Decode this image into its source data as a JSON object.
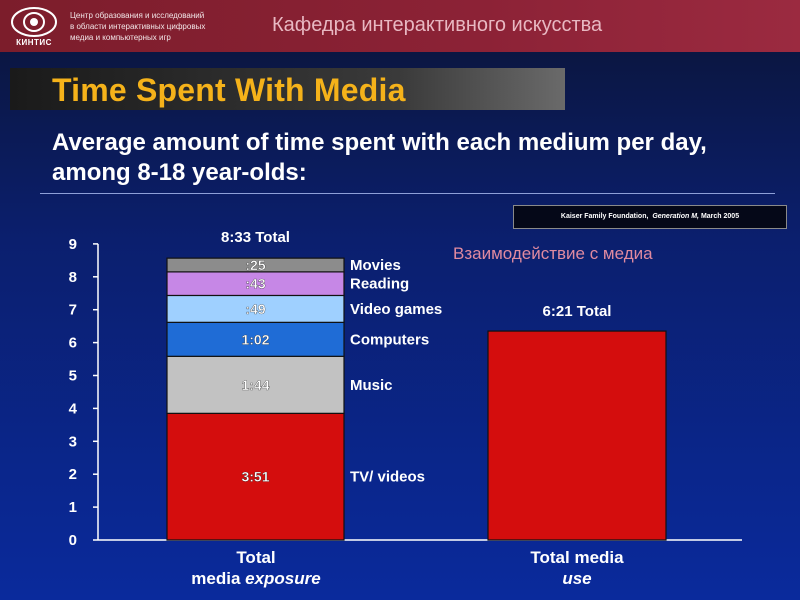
{
  "header": {
    "logo_text": "КИНТИС",
    "org_lines": [
      "Центр образования и исследований",
      "в области интерактивных цифровых",
      "медиа и компьютерных игр"
    ],
    "department": "Кафедра интерактивного искусства"
  },
  "slide": {
    "title": "Time Spent With Media",
    "subtitle": "Average amount of time spent with each medium per day, among 8-18 year-olds:",
    "source_text": "Kaiser Family Foundation,",
    "source_italic": "Generation M,",
    "source_date": "March 2005",
    "overlay_text": "Взаимодействие с медиа"
  },
  "colors": {
    "movies": "#8c8c8c",
    "reading": "#c687e6",
    "video_games": "#9fd0ff",
    "computers": "#1f6cd6",
    "music": "#c2c2c2",
    "tv": "#d40d0d",
    "media_use": "#d40d0d"
  },
  "chart_data": {
    "type": "bar",
    "stacked": true,
    "ylim": [
      0,
      9
    ],
    "yticks": [
      "0",
      "1",
      "2",
      "3",
      "4",
      "5",
      "6",
      "7",
      "8",
      "9"
    ],
    "categories": [
      {
        "line1": "Total",
        "line2_normal": "media ",
        "line2_italic": "exposure"
      },
      {
        "line1": "Total media",
        "line2_normal": "",
        "line2_italic": "use"
      }
    ],
    "bar1_total_label": "8:33 Total",
    "bar2_total_label": "6:21 Total",
    "series": [
      {
        "name": "TV/ videos",
        "label": "3:51",
        "hours": 3.85,
        "color_key": "tv"
      },
      {
        "name": "Music",
        "label": "1:44",
        "hours": 1.733,
        "color_key": "music"
      },
      {
        "name": "Computers",
        "label": "1:02",
        "hours": 1.033,
        "color_key": "computers"
      },
      {
        "name": "Video games",
        "label": ":49",
        "hours": 0.817,
        "color_key": "video_games"
      },
      {
        "name": "Reading",
        "label": ":43",
        "hours": 0.717,
        "color_key": "reading"
      },
      {
        "name": "Movies",
        "label": ":25",
        "hours": 0.417,
        "color_key": "movies"
      }
    ],
    "media_use_hours": 6.35,
    "grid": false
  }
}
